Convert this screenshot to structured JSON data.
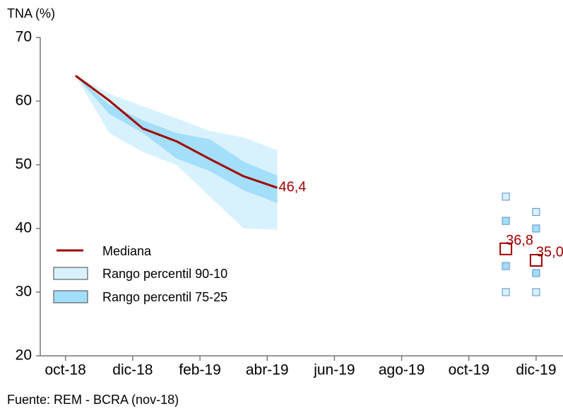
{
  "chart_data": {
    "type": "band-line",
    "y_label": "TNA (%)",
    "source": "Fuente: REM - BCRA (nov-18)",
    "xlim": [
      -0.75,
      14.8
    ],
    "xticks": [
      {
        "value": 0,
        "label": "oct-18"
      },
      {
        "value": 2,
        "label": "dic-18"
      },
      {
        "value": 4,
        "label": "feb-19"
      },
      {
        "value": 6,
        "label": "abr-19"
      },
      {
        "value": 8,
        "label": "jun-19"
      },
      {
        "value": 10,
        "label": "ago-19"
      },
      {
        "value": 12,
        "label": "oct-19"
      },
      {
        "value": 14,
        "label": "dic-19"
      }
    ],
    "ylim": [
      20,
      70
    ],
    "yticks": [
      20,
      30,
      40,
      50,
      60,
      70
    ],
    "x": [
      0.3,
      1.3,
      2.3,
      3.3,
      4.3,
      5.3,
      6.3
    ],
    "series": [
      {
        "name": "Mediana",
        "color": "#a00000",
        "values": [
          64,
          60.1,
          55.7,
          53.7,
          50.9,
          48.2,
          46.4
        ],
        "value_labels": [
          null,
          null,
          null,
          null,
          null,
          null,
          "46,4"
        ]
      },
      {
        "name": "Rango percentil 90-10",
        "color": "#d8f2fd",
        "high": [
          64,
          61.2,
          59.2,
          57.3,
          55.3,
          54.3,
          52.3
        ],
        "low": [
          64,
          55,
          52,
          50,
          45,
          40,
          39.8
        ]
      },
      {
        "name": "Rango percentil 75-25",
        "color": "#a3defa",
        "high": [
          64,
          59.5,
          57,
          55,
          54,
          50.5,
          48.3
        ],
        "low": [
          64,
          58,
          55,
          51,
          49,
          46,
          44
        ]
      }
    ],
    "markers": {
      "x": [
        13.1,
        14.0
      ],
      "median": [
        36.8,
        35.0
      ],
      "median_labels": [
        "36,8",
        "35,0"
      ],
      "p90": [
        45,
        42.6
      ],
      "p75": [
        41.2,
        40
      ],
      "p25": [
        34.1,
        33
      ],
      "p10": [
        30,
        30
      ]
    }
  }
}
